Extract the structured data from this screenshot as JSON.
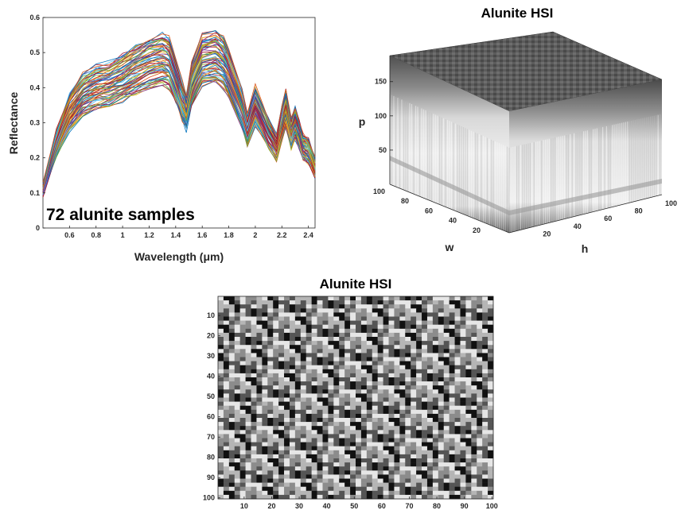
{
  "chart_data": [
    {
      "type": "line",
      "title": "",
      "xlabel": "Wavelength (μm)",
      "ylabel": "Reflectance",
      "xlim": [
        0.4,
        2.45
      ],
      "ylim": [
        0,
        0.6
      ],
      "xticks": [
        0.6,
        0.8,
        1,
        1.2,
        1.4,
        1.6,
        1.8,
        2,
        2.2,
        2.4
      ],
      "xtick_labels": [
        "0.6",
        "0.8",
        "1",
        "1.2",
        "1.4",
        "1.6",
        "1.8",
        "2",
        "2.2",
        "2.4"
      ],
      "yticks": [
        0,
        0.1,
        0.2,
        0.3,
        0.4,
        0.5,
        0.6
      ],
      "ytick_labels": [
        "0",
        "0.1",
        "0.2",
        "0.3",
        "0.4",
        "0.5",
        "0.6"
      ],
      "annotation": "72 alunite samples",
      "series_count": 72,
      "base_spectrum": {
        "x": [
          0.4,
          0.5,
          0.6,
          0.7,
          0.8,
          0.9,
          1.0,
          1.1,
          1.2,
          1.3,
          1.35,
          1.4,
          1.45,
          1.48,
          1.52,
          1.6,
          1.7,
          1.76,
          1.8,
          1.9,
          1.94,
          2.0,
          2.1,
          2.16,
          2.2,
          2.23,
          2.27,
          2.3,
          2.33,
          2.36,
          2.4,
          2.45
        ],
        "y": [
          0.11,
          0.24,
          0.33,
          0.38,
          0.4,
          0.41,
          0.43,
          0.45,
          0.47,
          0.48,
          0.47,
          0.42,
          0.36,
          0.33,
          0.41,
          0.48,
          0.49,
          0.47,
          0.44,
          0.34,
          0.28,
          0.35,
          0.27,
          0.23,
          0.3,
          0.34,
          0.27,
          0.3,
          0.27,
          0.23,
          0.22,
          0.17
        ]
      },
      "spread": [
        0.85,
        1.15
      ],
      "colors": [
        "#0072BD",
        "#D95319",
        "#EDB120",
        "#7E2F8E",
        "#77AC30",
        "#4DBEEE",
        "#A2142F"
      ]
    },
    {
      "type": "surface",
      "title": "Alunite HSI",
      "axes": {
        "w": "w",
        "h": "h",
        "p": "p"
      },
      "w_ticks": [
        20,
        40,
        60,
        80,
        100
      ],
      "h_ticks": [
        20,
        40,
        60,
        80,
        100
      ],
      "p_ticks": [
        50,
        100,
        150
      ],
      "w_lim": [
        0,
        100
      ],
      "h_lim": [
        0,
        100
      ],
      "p_lim": [
        0,
        188
      ],
      "colormap": "gray"
    },
    {
      "type": "heatmap",
      "title": "Alunite HSI",
      "xlim": [
        1,
        100
      ],
      "ylim": [
        1,
        100
      ],
      "xticks": [
        10,
        20,
        30,
        40,
        50,
        60,
        70,
        80,
        90,
        100
      ],
      "yticks": [
        10,
        20,
        30,
        40,
        50,
        60,
        70,
        80,
        90,
        100
      ],
      "colormap": "gray"
    }
  ]
}
